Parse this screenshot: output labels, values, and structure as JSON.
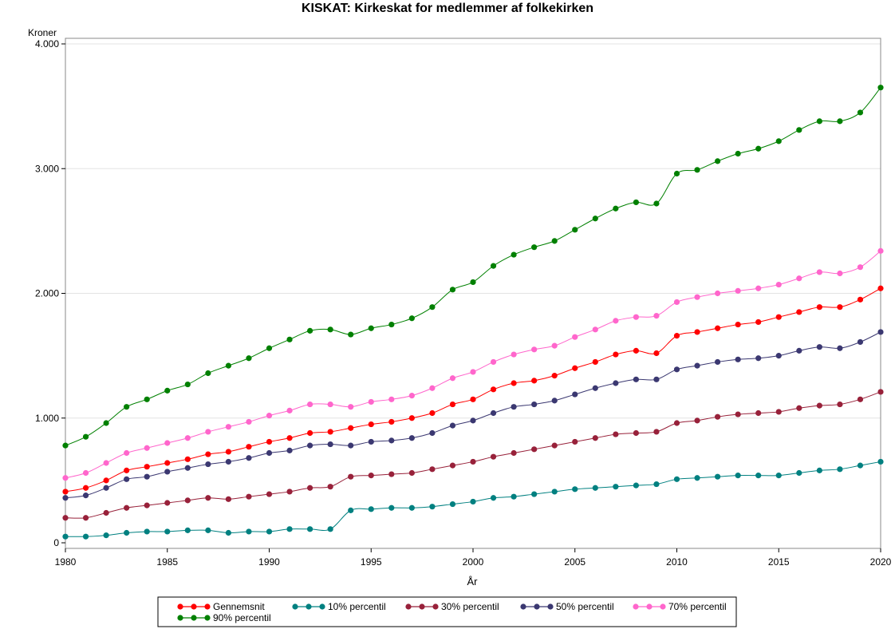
{
  "chart_data": {
    "type": "line",
    "title": "KISKAT: Kirkeskat for medlemmer af folkekirken",
    "xlabel": "År",
    "ylabel": "Kroner",
    "xlim": [
      1980,
      2020
    ],
    "ylim": [
      0,
      4000
    ],
    "x_ticks": [
      {
        "value": 1980,
        "label": "1980"
      },
      {
        "value": 1985,
        "label": "1985"
      },
      {
        "value": 1990,
        "label": "1990"
      },
      {
        "value": 1995,
        "label": "1995"
      },
      {
        "value": 2000,
        "label": "2000"
      },
      {
        "value": 2005,
        "label": "2005"
      },
      {
        "value": 2010,
        "label": "2010"
      },
      {
        "value": 2015,
        "label": "2015"
      },
      {
        "value": 2020,
        "label": "2020"
      }
    ],
    "y_ticks": [
      {
        "value": 0,
        "label": "0"
      },
      {
        "value": 1000,
        "label": "1.000"
      },
      {
        "value": 2000,
        "label": "2.000"
      },
      {
        "value": 3000,
        "label": "3.000"
      },
      {
        "value": 4000,
        "label": "4.000"
      }
    ],
    "grid": true,
    "legend_position": "bottom",
    "x": [
      1980,
      1981,
      1982,
      1983,
      1984,
      1985,
      1986,
      1987,
      1988,
      1989,
      1990,
      1991,
      1992,
      1993,
      1994,
      1995,
      1996,
      1997,
      1998,
      1999,
      2000,
      2001,
      2002,
      2003,
      2004,
      2005,
      2006,
      2007,
      2008,
      2009,
      2010,
      2011,
      2012,
      2013,
      2014,
      2015,
      2016,
      2017,
      2018,
      2019,
      2020
    ],
    "series": [
      {
        "name": "Gennemsnit",
        "color": "#ff0000",
        "values": [
          410,
          440,
          500,
          580,
          610,
          640,
          670,
          710,
          730,
          770,
          810,
          840,
          880,
          890,
          920,
          950,
          970,
          1000,
          1040,
          1110,
          1150,
          1230,
          1280,
          1300,
          1340,
          1400,
          1450,
          1510,
          1540,
          1520,
          1660,
          1690,
          1720,
          1750,
          1770,
          1810,
          1850,
          1890,
          1890,
          1950,
          2040
        ]
      },
      {
        "name": "10% percentil",
        "color": "#008080",
        "values": [
          50,
          50,
          60,
          80,
          90,
          90,
          100,
          100,
          80,
          90,
          90,
          110,
          110,
          110,
          260,
          270,
          280,
          280,
          290,
          310,
          330,
          360,
          370,
          390,
          410,
          430,
          440,
          450,
          460,
          470,
          510,
          520,
          530,
          540,
          540,
          540,
          560,
          580,
          590,
          620,
          650
        ]
      },
      {
        "name": "30% percentil",
        "color": "#98213a",
        "values": [
          200,
          200,
          240,
          280,
          300,
          320,
          340,
          360,
          350,
          370,
          390,
          410,
          440,
          450,
          530,
          540,
          550,
          560,
          590,
          620,
          650,
          690,
          720,
          750,
          780,
          810,
          840,
          870,
          880,
          890,
          960,
          980,
          1010,
          1030,
          1040,
          1050,
          1080,
          1100,
          1110,
          1150,
          1210
        ]
      },
      {
        "name": "50% percentil",
        "color": "#3b3871",
        "values": [
          360,
          380,
          440,
          510,
          530,
          570,
          600,
          630,
          650,
          680,
          720,
          740,
          780,
          790,
          780,
          810,
          820,
          840,
          880,
          940,
          980,
          1040,
          1090,
          1110,
          1140,
          1190,
          1240,
          1280,
          1310,
          1310,
          1390,
          1420,
          1450,
          1470,
          1480,
          1500,
          1540,
          1570,
          1560,
          1610,
          1690
        ]
      },
      {
        "name": "70% percentil",
        "color": "#ff66cc",
        "values": [
          520,
          560,
          640,
          720,
          760,
          800,
          840,
          890,
          930,
          970,
          1020,
          1060,
          1110,
          1110,
          1090,
          1130,
          1150,
          1180,
          1240,
          1320,
          1370,
          1450,
          1510,
          1550,
          1580,
          1650,
          1710,
          1780,
          1810,
          1820,
          1930,
          1970,
          2000,
          2020,
          2040,
          2070,
          2120,
          2170,
          2160,
          2210,
          2340
        ]
      },
      {
        "name": "90% percentil",
        "color": "#008000",
        "values": [
          780,
          850,
          960,
          1090,
          1150,
          1220,
          1270,
          1360,
          1420,
          1480,
          1560,
          1630,
          1700,
          1710,
          1670,
          1720,
          1750,
          1800,
          1890,
          2030,
          2090,
          2220,
          2310,
          2370,
          2420,
          2510,
          2600,
          2680,
          2730,
          2720,
          2960,
          2990,
          3060,
          3120,
          3160,
          3220,
          3310,
          3380,
          3380,
          3450,
          3650
        ]
      }
    ]
  }
}
